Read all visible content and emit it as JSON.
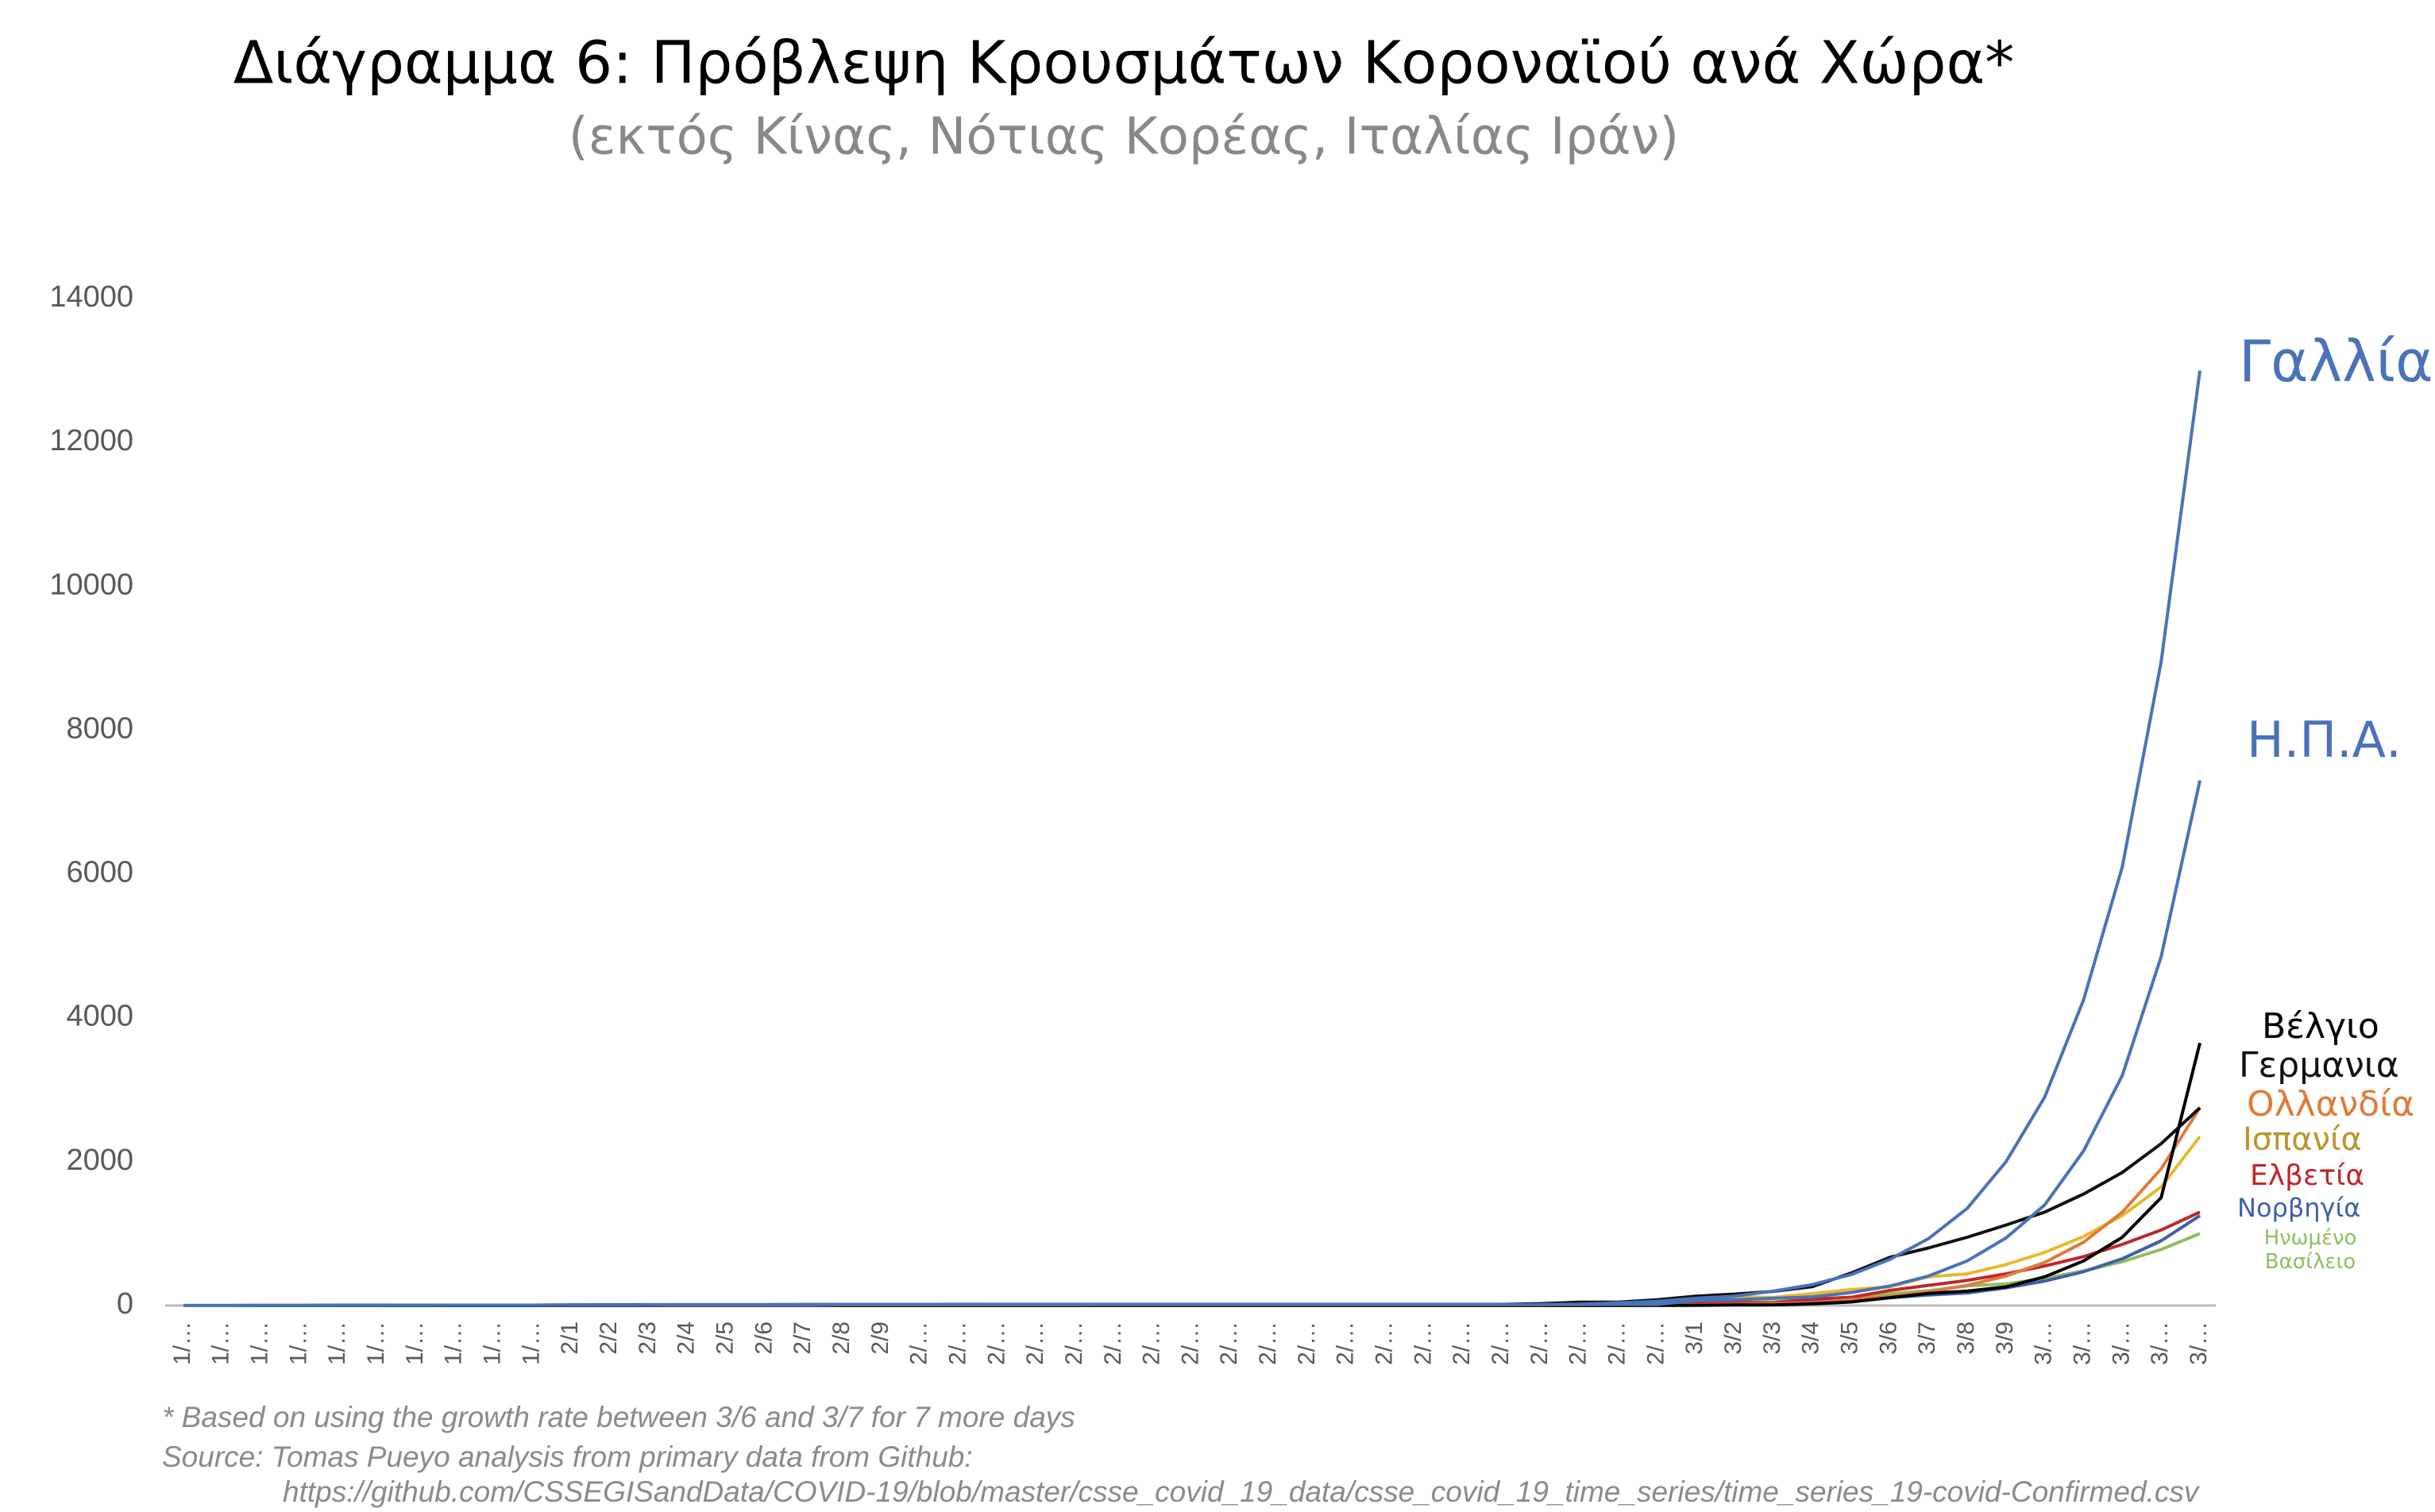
{
  "chart_data": {
    "type": "line",
    "title": "Διάγραμμα 6: Πρόβλεψη Κρουσμάτων Κοροναϊού ανά Χώρα*",
    "subtitle": "(εκτός Κίνας, Νότιας Κορέας, Ιταλίας Ιράν)",
    "notes": [
      "* Based on using the growth rate between 3/6 and 3/7 for 7 more days",
      "Source: Tomas Pueyo analysis from primary data from Github:",
      "https://github.com/CSSEGISandData/COVID-19/blob/master/csse_covid_19_data/csse_covid_19_time_series/time_series_19-covid-Confirmed.csv"
    ],
    "categories": [
      "1/…",
      "1/…",
      "1/…",
      "1/…",
      "1/…",
      "1/…",
      "1/…",
      "1/…",
      "1/…",
      "1/…",
      "2/1",
      "2/2",
      "2/3",
      "2/4",
      "2/5",
      "2/6",
      "2/7",
      "2/8",
      "2/9",
      "2/…",
      "2/…",
      "2/…",
      "2/…",
      "2/…",
      "2/…",
      "2/…",
      "2/…",
      "2/…",
      "2/…",
      "2/…",
      "2/…",
      "2/…",
      "2/…",
      "2/…",
      "2/…",
      "2/…",
      "2/…",
      "2/…",
      "2/…",
      "3/1",
      "3/2",
      "3/3",
      "3/4",
      "3/5",
      "3/6",
      "3/7",
      "3/8",
      "3/9",
      "3/…",
      "3/…",
      "3/…",
      "3/…",
      "3/…"
    ],
    "ylim": [
      0,
      14000
    ],
    "yticks": [
      0,
      2000,
      4000,
      6000,
      8000,
      10000,
      12000,
      14000
    ],
    "series": [
      {
        "name": "Ηνωμένο Βασίλειο",
        "color": "#8fbf5f",
        "values": [
          0,
          0,
          0,
          0,
          0,
          0,
          0,
          0,
          0,
          0,
          0,
          2,
          2,
          2,
          2,
          2,
          2,
          3,
          3,
          8,
          8,
          9,
          9,
          9,
          9,
          9,
          9,
          9,
          9,
          9,
          9,
          9,
          9,
          9,
          13,
          13,
          15,
          20,
          23,
          36,
          40,
          51,
          85,
          116,
          163,
          206,
          273,
          300,
          380,
          480,
          610,
          780,
          1000
        ]
      },
      {
        "name": "Νορβηγία",
        "color": "#3d5fa8",
        "values": [
          0,
          0,
          0,
          0,
          0,
          0,
          0,
          0,
          0,
          0,
          0,
          0,
          0,
          0,
          0,
          0,
          0,
          0,
          0,
          0,
          0,
          0,
          0,
          0,
          0,
          0,
          0,
          0,
          0,
          0,
          0,
          0,
          0,
          0,
          0,
          1,
          1,
          6,
          15,
          19,
          25,
          32,
          56,
          86,
          108,
          147,
          176,
          245,
          340,
          470,
          650,
          900,
          1250
        ]
      },
      {
        "name": "Ελβετία",
        "color": "#c0262d",
        "values": [
          0,
          0,
          0,
          0,
          0,
          0,
          0,
          0,
          0,
          0,
          0,
          0,
          0,
          0,
          0,
          0,
          0,
          0,
          0,
          0,
          0,
          0,
          0,
          0,
          0,
          0,
          0,
          0,
          0,
          0,
          0,
          0,
          0,
          0,
          1,
          1,
          8,
          8,
          18,
          27,
          42,
          37,
          90,
          114,
          210,
          280,
          350,
          440,
          550,
          680,
          850,
          1050,
          1300
        ]
      },
      {
        "name": "Ισπανία",
        "color": "#e8b92e",
        "values": [
          0,
          0,
          0,
          0,
          0,
          0,
          0,
          0,
          0,
          0,
          1,
          1,
          1,
          1,
          1,
          1,
          1,
          1,
          2,
          2,
          2,
          2,
          2,
          2,
          2,
          2,
          2,
          2,
          2,
          2,
          2,
          2,
          2,
          2,
          6,
          13,
          15,
          32,
          45,
          84,
          120,
          114,
          165,
          222,
          261,
          400,
          440,
          570,
          740,
          960,
          1250,
          1650,
          2350
        ]
      },
      {
        "name": "Ολλανδία",
        "color": "#e07b39",
        "values": [
          0,
          0,
          0,
          0,
          0,
          0,
          0,
          0,
          0,
          0,
          0,
          0,
          0,
          0,
          0,
          0,
          0,
          0,
          0,
          0,
          0,
          0,
          0,
          0,
          0,
          0,
          0,
          0,
          0,
          0,
          0,
          0,
          0,
          0,
          0,
          0,
          1,
          1,
          6,
          10,
          18,
          24,
          38,
          82,
          128,
          188,
          280,
          410,
          600,
          880,
          1300,
          1900,
          2750
        ]
      },
      {
        "name": "Γερμανια",
        "color": "#111111",
        "values": [
          0,
          0,
          0,
          0,
          0,
          1,
          4,
          4,
          4,
          5,
          8,
          10,
          12,
          12,
          12,
          12,
          13,
          13,
          14,
          14,
          16,
          16,
          16,
          16,
          16,
          16,
          16,
          16,
          16,
          16,
          16,
          16,
          16,
          16,
          17,
          27,
          46,
          48,
          79,
          130,
          159,
          196,
          262,
          450,
          670,
          800,
          950,
          1120,
          1300,
          1550,
          1850,
          2250,
          2750
        ]
      },
      {
        "name": "Βέλγιο",
        "color": "#000000",
        "values": [
          0,
          0,
          0,
          0,
          0,
          0,
          0,
          0,
          0,
          0,
          0,
          0,
          0,
          1,
          1,
          1,
          1,
          1,
          1,
          1,
          1,
          1,
          1,
          1,
          1,
          1,
          1,
          1,
          1,
          1,
          1,
          1,
          1,
          1,
          1,
          1,
          1,
          1,
          1,
          2,
          8,
          8,
          23,
          50,
          109,
          169,
          200,
          260,
          400,
          620,
          950,
          1500,
          3650
        ]
      },
      {
        "name": "Η.Π.Α.",
        "color": "#4a72b8",
        "values": [
          1,
          1,
          2,
          2,
          5,
          5,
          5,
          5,
          5,
          6,
          8,
          8,
          11,
          11,
          11,
          11,
          12,
          12,
          12,
          12,
          12,
          13,
          13,
          14,
          14,
          14,
          14,
          14,
          14,
          14,
          14,
          14,
          14,
          14,
          14,
          14,
          14,
          15,
          16,
          70,
          80,
          100,
          120,
          180,
          270,
          410,
          620,
          940,
          1400,
          2150,
          3200,
          4850,
          7300
        ]
      },
      {
        "name": "Γαλλία",
        "color": "#4a72b8",
        "values": [
          0,
          0,
          2,
          3,
          3,
          3,
          4,
          5,
          5,
          5,
          6,
          6,
          6,
          6,
          6,
          6,
          6,
          11,
          11,
          11,
          11,
          11,
          11,
          11,
          12,
          12,
          12,
          12,
          12,
          12,
          12,
          12,
          12,
          12,
          12,
          14,
          18,
          38,
          57,
          100,
          130,
          200,
          290,
          430,
          640,
          930,
          1350,
          2000,
          2900,
          4250,
          6100,
          8950,
          13000
        ]
      }
    ]
  }
}
